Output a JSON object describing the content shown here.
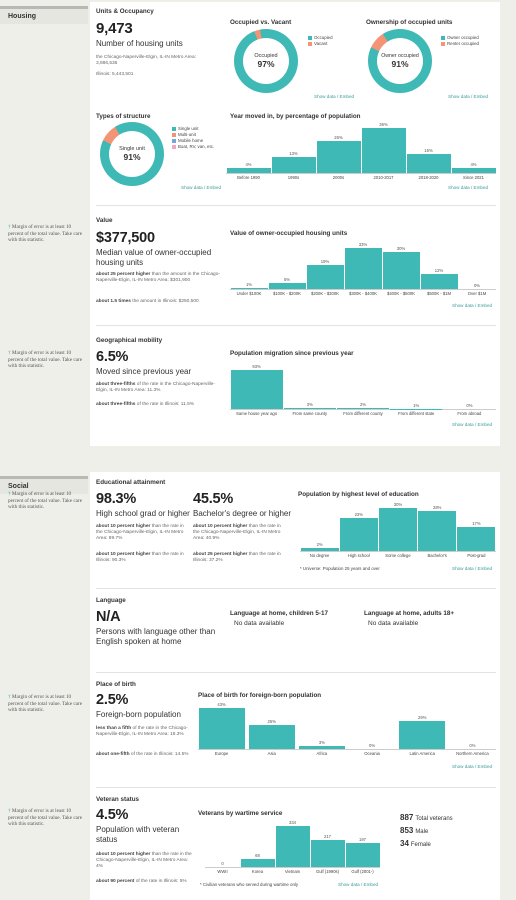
{
  "colors": {
    "teal": "#3eb9b6",
    "orange": "#f29475",
    "blue": "#6fa8dc",
    "pink": "#f4a6c0",
    "link": "#3a9c9a"
  },
  "housing": {
    "section": "Housing",
    "units": {
      "title": "Units & Occupancy",
      "value": "9,473",
      "label": "Number of housing units",
      "metro_label": "the Chicago-Naperville-Elgin, IL-IN Metro Area:",
      "metro_value": "3,886,535",
      "state_label": "Illinois:",
      "state_value": "5,443,501"
    },
    "occupied": {
      "title": "Occupied vs. Vacant",
      "center_label": "Occupied",
      "center_value": "97%",
      "legend": [
        "Occupied",
        "Vacant"
      ],
      "share": 0.97,
      "link": "Show data / Embed"
    },
    "ownership": {
      "title": "Ownership of occupied units",
      "center_label": "Owner occupied",
      "center_value": "91%",
      "legend": [
        "Owner occupied",
        "Renter occupied"
      ],
      "share": 0.91,
      "link": "Show data / Embed"
    },
    "structure": {
      "title": "Types of structure",
      "center_label": "Single unit",
      "center_value": "91%",
      "legend": [
        "Single unit",
        "Multi-unit",
        "Mobile home",
        "Boat, RV, van, etc."
      ],
      "share": 0.91,
      "link": "Show data / Embed"
    },
    "moved": {
      "title": "Year moved in, by percentage of population",
      "link": "Show data / Embed"
    },
    "value": {
      "moe": "Margin of error is at least 10 percent of the total value. Take care with this statistic.",
      "title": "Value",
      "value": "$377,500",
      "label": "Median value of owner-occupied housing units",
      "comp1_prefix": "about 25 percent higher",
      "comp1_rest": " than the amount in the Chicago-Naperville-Elgin, IL-IN Metro Area: $301,900",
      "comp2_prefix": "about 1.5 times",
      "comp2_rest": " the amount in Illinois: $250,500",
      "chart_title": "Value of owner-occupied housing units",
      "link": "Show data / Embed"
    },
    "mobility": {
      "moe": "Margin of error is at least 10 percent of the total value. Take care with this statistic.",
      "title": "Geographical mobility",
      "value": "6.5%",
      "label": "Moved since previous year",
      "comp1_prefix": "about three-fifths",
      "comp1_rest": " of the rate in the Chicago-Naperville-Elgin, IL-IN Metro Area: 11.3%",
      "comp2_prefix": "about three-fifths",
      "comp2_rest": " of the rate in Illinois: 11.5%",
      "chart_title": "Population migration since previous year",
      "link": "Show data / Embed"
    }
  },
  "social": {
    "section": "Social",
    "education": {
      "moe": "Margin of error is at least 10 percent of the total value. Take care with this statistic.",
      "title": "Educational attainment",
      "hs_value": "98.3%",
      "hs_label": "High school grad or higher",
      "ba_value": "45.5%",
      "ba_label": "Bachelor's degree or higher",
      "hs_comp1_prefix": "about 10 percent higher",
      "hs_comp1_rest": " than the rate in the Chicago-Naperville-Elgin, IL-IN Metro Area: 89.7%",
      "hs_comp2_prefix": "about 10 percent higher",
      "hs_comp2_rest": " than the rate in Illinois: 90.3%",
      "ba_comp1_prefix": "about 10 percent higher",
      "ba_comp1_rest": " than the rate in the Chicago-Naperville-Elgin, IL-IN Metro Area: 40.9%",
      "ba_comp2_prefix": "about 25 percent higher",
      "ba_comp2_rest": " than the rate in Illinois: 37.2%",
      "chart_title": "Population by highest level of education",
      "footnote": "* Universe: Population 25 years and over",
      "link": "Show data / Embed"
    },
    "language": {
      "title": "Language",
      "value": "N/A",
      "label": "Persons with language other than English spoken at home",
      "kids_title": "Language at home, children 5-17",
      "kids_text": "No data available",
      "adults_title": "Language at home, adults 18+",
      "adults_text": "No data available"
    },
    "birth": {
      "moe": "Margin of error is at least 10 percent of the total value. Take care with this statistic.",
      "title": "Place of birth",
      "value": "2.5%",
      "label": "Foreign-born population",
      "comp1_prefix": "less than a fifth",
      "comp1_rest": " of the rate in the Chicago-Naperville-Elgin, IL-IN Metro Area: 18.3%",
      "comp2_prefix": "about one-fifth",
      "comp2_rest": " of the rate in Illinois: 14.5%",
      "chart_title": "Place of birth for foreign-born population",
      "link": "Show data / Embed"
    },
    "veterans": {
      "moe": "Margin of error is at least 10 percent of the total value. Take care with this statistic.",
      "title": "Veteran status",
      "value": "4.5%",
      "label": "Population with veteran status",
      "comp1_prefix": "about 10 percent higher",
      "comp1_rest": " than the rate in the Chicago-Naperville-Elgin, IL-IN Metro Area: 4%",
      "comp2_prefix": "about 90 percent",
      "comp2_rest": " of the rate in Illinois: 5%",
      "chart_title": "Veterans by wartime service",
      "footnote": "* Civilian veterans who served during wartime only",
      "link": "Show data / Embed",
      "total_value": "887",
      "total_label": "Total veterans",
      "male_value": "853",
      "male_label": "Male",
      "female_value": "34",
      "female_label": "Female"
    }
  },
  "chart_data": [
    {
      "type": "bar",
      "title": "Year moved in, by percentage of population",
      "categories": [
        "Before 1990",
        "1990s",
        "2000s",
        "2010-2017",
        "2018-2020",
        "Since 2021"
      ],
      "values": [
        4,
        13,
        26,
        36,
        15,
        4
      ],
      "labels": [
        "4%",
        "13%",
        "26%",
        "36%",
        "15%",
        "4%"
      ]
    },
    {
      "type": "bar",
      "title": "Value of owner-occupied housing units",
      "categories": [
        "Under $100K",
        "$100K - $200K",
        "$200K - $300K",
        "$300K - $400K",
        "$400K - $500K",
        "$500K - $1M",
        "Over $1M"
      ],
      "values": [
        1,
        5,
        19,
        33,
        30,
        12,
        0
      ],
      "labels": [
        "1%",
        "5%",
        "19%",
        "33%",
        "30%",
        "12%",
        "0%"
      ]
    },
    {
      "type": "bar",
      "title": "Population migration since previous year",
      "categories": [
        "Same house year ago",
        "From same county",
        "From different county",
        "From different state",
        "From abroad"
      ],
      "values": [
        93,
        3,
        2,
        1,
        0
      ],
      "labels": [
        "93%",
        "3%",
        "2%",
        "1%",
        "0%"
      ]
    },
    {
      "type": "bar",
      "title": "Population by highest level of education",
      "categories": [
        "No degree",
        "High school",
        "Some college",
        "Bachelor's",
        "Post-grad"
      ],
      "values": [
        2,
        23,
        30,
        28,
        17
      ],
      "labels": [
        "2%",
        "23%",
        "30%",
        "28%",
        "17%"
      ]
    },
    {
      "type": "bar",
      "title": "Place of birth for foreign-born population",
      "categories": [
        "Europe",
        "Asia",
        "Africa",
        "Oceania",
        "Latin America",
        "Northern America"
      ],
      "values": [
        43,
        25,
        3,
        0,
        29,
        0
      ],
      "labels": [
        "43%",
        "25%",
        "3%",
        "0%",
        "29%",
        "0%"
      ]
    },
    {
      "type": "bar",
      "title": "Veterans by wartime service",
      "categories": [
        "WWII",
        "Korea",
        "Vietnam",
        "Gulf (1990s)",
        "Gulf (2001-)"
      ],
      "values": [
        0,
        68,
        334,
        217,
        197
      ],
      "labels": [
        "0",
        "68",
        "334",
        "217",
        "197"
      ]
    }
  ]
}
